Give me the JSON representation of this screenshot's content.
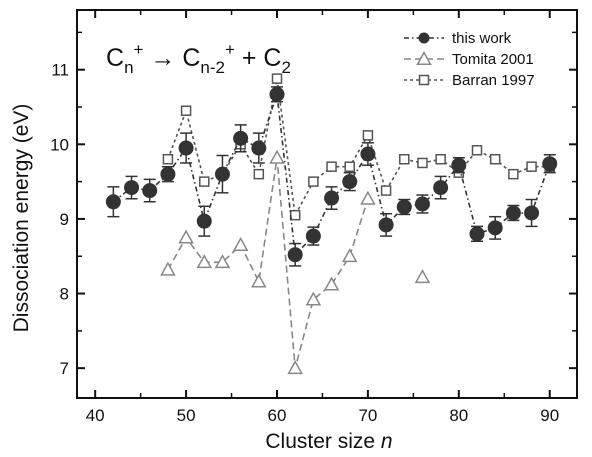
{
  "chart_data": {
    "type": "scatter",
    "title": "",
    "annotation": {
      "parts": [
        "C",
        "n",
        "+",
        " → C",
        "n-2",
        "+",
        " + C",
        "2"
      ]
    },
    "xlabel": "Cluster size",
    "xlabel_var": "n",
    "ylabel": "Dissociation energy (eV)",
    "xlim": [
      38,
      93
    ],
    "ylim": [
      6.6,
      11.8
    ],
    "xticks": [
      40,
      50,
      60,
      70,
      80,
      90
    ],
    "yticks": [
      7,
      8,
      9,
      10,
      11
    ],
    "legend_position": "top-right",
    "series": [
      {
        "name": "this work",
        "marker": "filled-circle",
        "line": "dash-dot",
        "color": "#333333",
        "x": [
          42,
          44,
          46,
          48,
          50,
          52,
          54,
          56,
          58,
          60,
          62,
          64,
          66,
          68,
          70,
          72,
          74,
          76,
          78,
          80,
          82,
          84,
          86,
          88,
          90
        ],
        "y": [
          9.23,
          9.42,
          9.38,
          9.6,
          9.95,
          8.97,
          9.6,
          10.08,
          9.95,
          10.67,
          8.52,
          8.77,
          9.28,
          9.5,
          9.87,
          8.92,
          9.16,
          9.2,
          9.42,
          9.72,
          8.8,
          8.88,
          9.08,
          9.08,
          9.74
        ],
        "yerr": [
          0.2,
          0.15,
          0.15,
          0.1,
          0.2,
          0.2,
          0.25,
          0.18,
          0.2,
          0.1,
          0.15,
          0.12,
          0.15,
          0.12,
          0.15,
          0.15,
          0.1,
          0.12,
          0.15,
          0.1,
          0.1,
          0.15,
          0.1,
          0.18,
          0.12
        ]
      },
      {
        "name": "Tomita 2001",
        "marker": "open-triangle",
        "line": "dashed",
        "color": "#888888",
        "x": [
          48,
          50,
          52,
          54,
          56,
          58,
          60,
          62,
          64,
          66,
          68,
          70
        ],
        "y": [
          8.32,
          8.75,
          8.42,
          8.42,
          8.65,
          8.16,
          9.82,
          7.0,
          7.92,
          8.12,
          8.5,
          9.27
        ],
        "extra_points": [
          {
            "x": 76,
            "y": 8.22
          }
        ]
      },
      {
        "name": "Barran 1997",
        "marker": "open-square",
        "line": "dotted",
        "color": "#555555",
        "x": [
          48,
          50,
          52,
          54,
          56,
          58,
          60,
          62,
          64,
          66,
          68,
          70,
          72,
          74,
          76,
          78,
          80,
          82,
          84,
          86,
          88,
          90
        ],
        "y": [
          9.8,
          10.45,
          9.5,
          9.6,
          10.0,
          9.6,
          10.88,
          9.05,
          9.5,
          9.7,
          9.7,
          10.12,
          9.38,
          9.8,
          9.75,
          9.8,
          9.62,
          9.92,
          9.8,
          9.6,
          9.7,
          9.7
        ]
      }
    ]
  }
}
